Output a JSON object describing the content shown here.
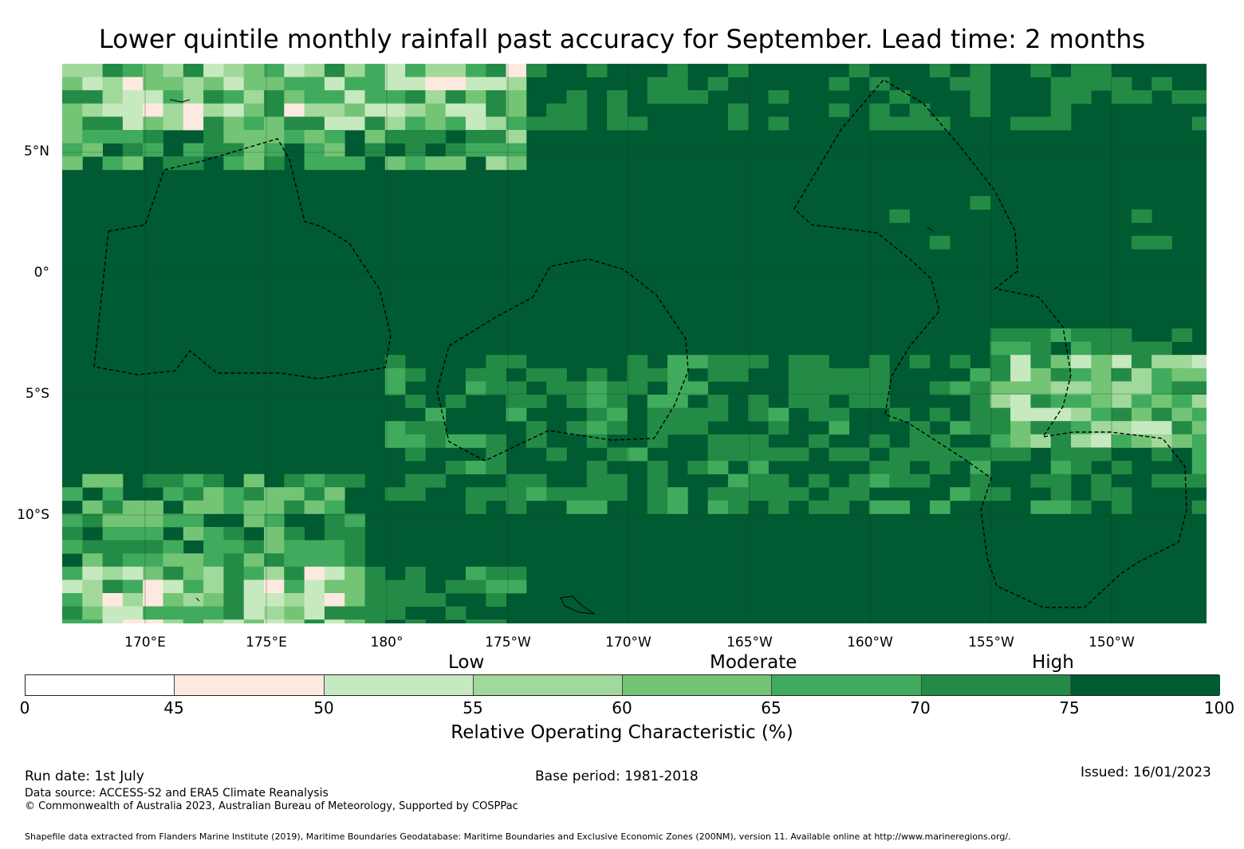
{
  "title": "Lower quintile monthly rainfall past accuracy for September. Lead time: 2 months",
  "map": {
    "lat_labels": [
      "5°N",
      "0°",
      "5°S",
      "10°S"
    ],
    "lon_labels": [
      "170°E",
      "175°E",
      "180°",
      "175°W",
      "170°W",
      "165°W",
      "160°W",
      "155°W",
      "150°W"
    ],
    "cells_per_side_hint": "grid",
    "eez_line_color": "#000000"
  },
  "legend": {
    "categories": [
      "Low",
      "Moderate",
      "High"
    ],
    "colors": [
      "#ffffff",
      "#fee9e0",
      "#c7e9c0",
      "#a1d99b",
      "#74c476",
      "#41ab5d",
      "#238b45",
      "#005a32"
    ],
    "ticks": [
      "0",
      "45",
      "50",
      "55",
      "60",
      "65",
      "70",
      "75",
      "100"
    ],
    "label": "Relative Operating Characteristic (%)"
  },
  "footer": {
    "run_date": "Run date: 1st July",
    "base_period": "Base period: 1981-2018",
    "issued": "Issued: 16/01/2023",
    "data_source": "Data source: ACCESS-S2 and ERA5 Climate Reanalysis",
    "copyright": "© Commonwealth of Australia 2023, Australian Bureau of Meteorology, Supported by COSPPac",
    "shapefile": "Shapefile data extracted from Flanders Marine Institute (2019), Maritime Boundaries Geodatabase: Maritime Boundaries and Exclusive Economic Zones (200NM), version 11. Available online at http://www.marineregions.org/."
  }
}
